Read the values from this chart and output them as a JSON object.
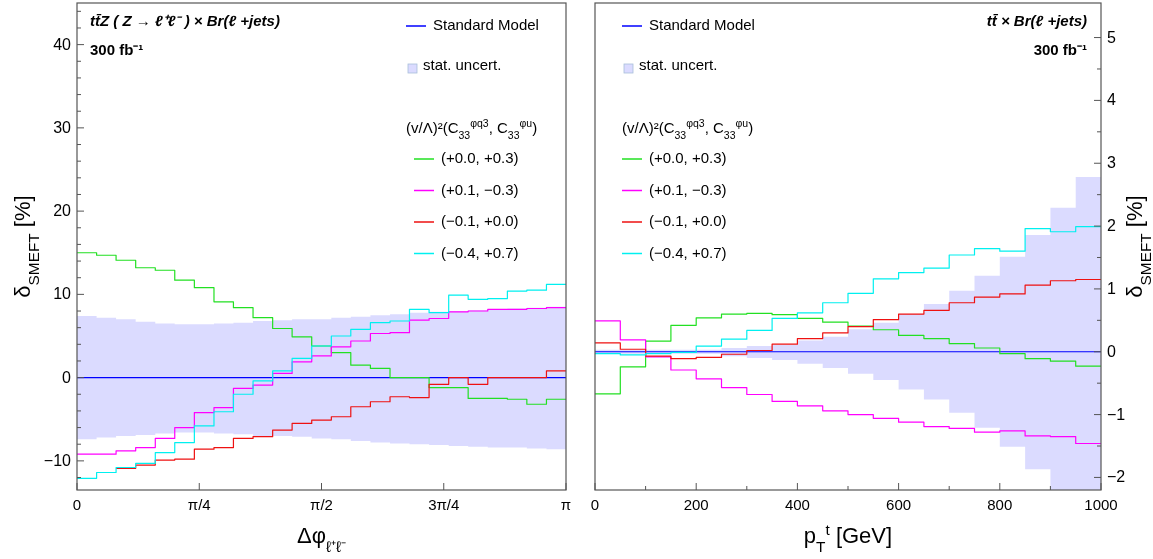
{
  "chart_data": [
    {
      "type": "step",
      "title": "tt̄Z ( Z → ℓ⁺ℓ⁻ ) × Br(ℓ +jets)",
      "subtitle": "300 fb⁻¹",
      "xlabel": "Δφ$_{ℓ⁺ℓ⁻}$",
      "ylabel": "δ$_{SMEFT}$ [%]",
      "legend_title": "(v/Λ)²(C$_{33}$$^{φq3}$, C$_{33}$$^{φu}$)",
      "legend": "top right",
      "annotations": [
        "stat. uncert."
      ],
      "x": [
        0,
        0.126,
        0.251,
        0.377,
        0.503,
        0.628,
        0.754,
        0.88,
        1.005,
        1.131,
        1.257,
        1.382,
        1.508,
        1.634,
        1.759,
        1.885,
        2.011,
        2.136,
        2.262,
        2.388,
        2.513,
        2.639,
        2.765,
        2.89,
        3.016,
        3.1416
      ],
      "xlim": [
        0,
        3.1416
      ],
      "xticks": [
        0,
        {
          "value": 0.7854,
          "label": "π/4"
        },
        {
          "value": 1.5708,
          "label": "π/2"
        },
        {
          "value": 2.3562,
          "label": "3π/4"
        },
        {
          "value": 3.1416,
          "label": "π"
        }
      ],
      "ylim": [
        -13.5,
        45
      ],
      "yticks": [
        {
          "value": -12,
          "label": null
        },
        -10,
        {
          "value": -8,
          "label": null
        },
        {
          "value": -6,
          "label": null
        },
        {
          "value": -4,
          "label": null
        },
        {
          "value": -2,
          "label": null
        },
        0,
        {
          "value": 2,
          "label": null
        },
        {
          "value": 4,
          "label": null
        },
        {
          "value": 6,
          "label": null
        },
        {
          "value": 8,
          "label": null
        },
        10,
        {
          "value": 12,
          "label": null
        },
        {
          "value": 14,
          "label": null
        },
        {
          "value": 16,
          "label": null
        },
        {
          "value": 18,
          "label": null
        },
        20,
        {
          "value": 22,
          "label": null
        },
        {
          "value": 24,
          "label": null
        },
        {
          "value": 26,
          "label": null
        },
        {
          "value": 28,
          "label": null
        },
        30,
        {
          "value": 32,
          "label": null
        },
        {
          "value": 34,
          "label": null
        },
        {
          "value": 36,
          "label": null
        },
        {
          "value": 38,
          "label": null
        },
        40,
        {
          "value": 42,
          "label": null
        },
        {
          "value": 44,
          "label": null
        }
      ],
      "series": [
        {
          "name": "Standard Model",
          "color": "#0000ff",
          "values": [
            0,
            0,
            0,
            0,
            0,
            0,
            0,
            0,
            0,
            0,
            0,
            0,
            0,
            0,
            0,
            0,
            0,
            0,
            0,
            0,
            0,
            0,
            0,
            0,
            0,
            0
          ],
          "upper": [
            7.4,
            7.2,
            7.0,
            6.7,
            6.5,
            6.4,
            6.4,
            6.5,
            6.6,
            6.8,
            6.9,
            7.0,
            7.0,
            7.2,
            7.3,
            7.5,
            7.6,
            7.8,
            7.9,
            8.0,
            8.1,
            8.2,
            8.3,
            8.4,
            8.5,
            8.5
          ],
          "lower": [
            -7.4,
            -7.2,
            -7.0,
            -6.9,
            -6.7,
            -6.6,
            -6.6,
            -6.7,
            -6.8,
            -7.0,
            -7.0,
            -7.1,
            -7.3,
            -7.4,
            -7.6,
            -7.8,
            -7.9,
            -8.0,
            -8.1,
            -8.2,
            -8.3,
            -8.4,
            -8.4,
            -8.5,
            -8.6,
            -8.6
          ]
        },
        {
          "name": "(+0.0, +0.3)",
          "color": "#22e022",
          "values": [
            15.0,
            14.7,
            14.1,
            13.2,
            12.9,
            11.7,
            10.8,
            9.1,
            8.4,
            7.2,
            5.9,
            4.9,
            3.8,
            3.0,
            1.5,
            1.1,
            0,
            0,
            -1.2,
            -1.2,
            -2.5,
            -2.5,
            -2.6,
            -3.2,
            -2.6,
            -2.6
          ]
        },
        {
          "name": "(+0.1, −0.3)",
          "color": "#ff00ff",
          "values": [
            -9.2,
            -9.2,
            -8.8,
            -8.4,
            -7.3,
            -6.0,
            -4.2,
            -3.6,
            -1.3,
            -0.9,
            0.5,
            1.9,
            2.6,
            3.7,
            4.4,
            5.3,
            5.4,
            6.9,
            7.1,
            7.9,
            8.0,
            8.2,
            8.2,
            8.3,
            8.4,
            8.4
          ]
        },
        {
          "name": "(−0.1, +0.0)",
          "color": "#ee1111",
          "values": [
            null,
            null,
            -10.9,
            -10.5,
            -9.9,
            -9.8,
            -8.6,
            -8.4,
            -7.3,
            -7.1,
            -6.3,
            -5.5,
            -5.1,
            -4.7,
            -3.5,
            -2.9,
            -2.3,
            -2.4,
            -0.8,
            0,
            -0.8,
            0,
            0,
            0,
            0.8,
            0.8
          ]
        },
        {
          "name": "(−0.4, +0.7)",
          "color": "#00f0f0",
          "values": [
            -12.1,
            -11.4,
            -10.8,
            -10.3,
            -9.0,
            -7.8,
            -5.8,
            -4.1,
            -2.0,
            -0.4,
            0.8,
            2.3,
            3.8,
            5.0,
            5.8,
            6.6,
            6.8,
            8.2,
            7.8,
            9.9,
            9.4,
            9.5,
            10.4,
            10.5,
            11.2,
            11.2
          ]
        }
      ]
    },
    {
      "type": "step",
      "title": "tt̄ × Br(ℓ +jets)",
      "subtitle": "300 fb⁻¹",
      "xlabel": "p$_{T}$$^{t}$  [GeV]",
      "y2label": "δ$_{SMEFT}$ [%]",
      "legend_title": "(v/Λ)²(C$_{33}$$^{φq3}$, C$_{33}$$^{φu}$)",
      "legend": "top left",
      "annotations": [
        "stat. uncert."
      ],
      "x": [
        0,
        50,
        100,
        150,
        200,
        250,
        300,
        350,
        400,
        450,
        500,
        550,
        600,
        650,
        700,
        750,
        800,
        850,
        900,
        950,
        1000
      ],
      "xlim": [
        0,
        1000
      ],
      "xticks": [
        0,
        {
          "value": 100,
          "label": null
        },
        200,
        {
          "value": 300,
          "label": null
        },
        400,
        {
          "value": 500,
          "label": null
        },
        600,
        {
          "value": 700,
          "label": null
        },
        800,
        {
          "value": 900,
          "label": null
        },
        1000
      ],
      "y2lim": [
        -2.2,
        5.55
      ],
      "y2ticks": [
        -2,
        {
          "value": -1.5,
          "label": null
        },
        -1,
        {
          "value": -0.5,
          "label": null
        },
        0,
        {
          "value": 0.5,
          "label": null
        },
        1,
        {
          "value": 1.5,
          "label": null
        },
        2,
        {
          "value": 2.5,
          "label": null
        },
        3,
        {
          "value": 3.5,
          "label": null
        },
        4,
        {
          "value": 4.5,
          "label": null
        },
        5
      ],
      "series": [
        {
          "name": "Standard Model",
          "axis": "y2",
          "color": "#0000ff",
          "values": [
            0,
            0,
            0,
            0,
            0,
            0,
            0,
            0,
            0,
            0,
            0,
            0,
            0,
            0,
            0,
            0,
            0,
            0,
            0,
            0,
            0
          ],
          "upper": [
            0.03,
            0.03,
            0.03,
            0.03,
            0.03,
            0.06,
            0.09,
            0.11,
            0.18,
            0.24,
            0.36,
            0.46,
            0.6,
            0.76,
            0.97,
            1.21,
            1.51,
            1.86,
            2.29,
            2.78,
            2.78
          ],
          "lower": [
            -0.03,
            -0.03,
            -0.03,
            -0.03,
            -0.03,
            -0.07,
            -0.1,
            -0.13,
            -0.19,
            -0.26,
            -0.35,
            -0.45,
            -0.6,
            -0.76,
            -0.97,
            -1.21,
            -1.51,
            -1.87,
            -2.2,
            -2.2,
            -2.2
          ]
        },
        {
          "name": "(+0.0, +0.3)",
          "axis": "y2",
          "color": "#22e022",
          "values": [
            -0.67,
            -0.24,
            0.17,
            0.42,
            0.54,
            0.6,
            0.61,
            0.59,
            0.53,
            0.47,
            0.41,
            0.35,
            0.26,
            0.21,
            0.13,
            0.06,
            -0.03,
            -0.11,
            -0.15,
            -0.23,
            -0.23
          ]
        },
        {
          "name": "(+0.1, −0.3)",
          "axis": "y2",
          "color": "#ff00ff",
          "values": [
            0.49,
            0.19,
            -0.08,
            -0.29,
            -0.43,
            -0.57,
            -0.68,
            -0.79,
            -0.86,
            -0.94,
            -1.0,
            -1.06,
            -1.12,
            -1.19,
            -1.22,
            -1.28,
            -1.26,
            -1.34,
            -1.35,
            -1.46,
            -1.46
          ]
        },
        {
          "name": "(−0.1, +0.0)",
          "axis": "y2",
          "color": "#ee1111",
          "values": [
            0.14,
            0.04,
            -0.07,
            -0.11,
            -0.09,
            -0.04,
            0.02,
            0.12,
            0.21,
            0.3,
            0.4,
            0.51,
            0.6,
            0.66,
            0.78,
            0.87,
            0.92,
            1.06,
            1.13,
            1.15,
            1.15
          ]
        },
        {
          "name": "(−0.4, +0.7)",
          "axis": "y2",
          "color": "#00f0f0",
          "values": [
            -0.03,
            -0.05,
            -0.03,
            -0.01,
            0.09,
            0.2,
            0.34,
            0.53,
            0.62,
            0.78,
            0.93,
            1.16,
            1.26,
            1.33,
            1.54,
            1.64,
            1.6,
            1.96,
            1.91,
            1.99,
            1.99
          ]
        }
      ]
    }
  ]
}
